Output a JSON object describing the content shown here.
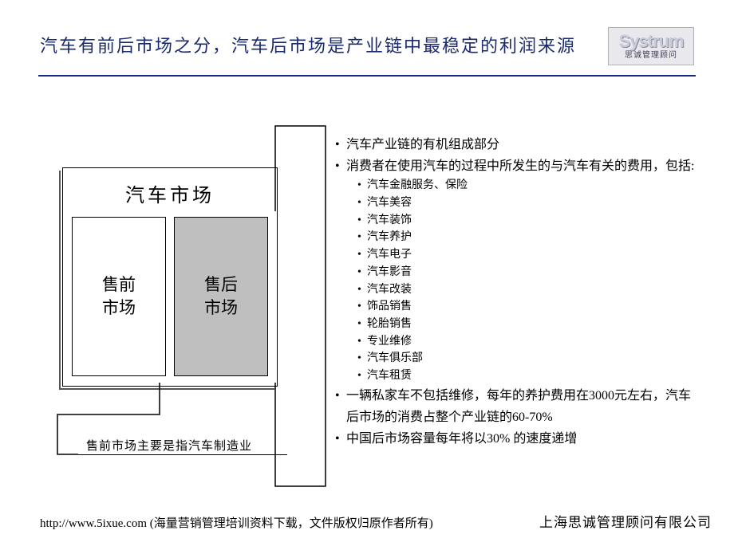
{
  "header": {
    "title": "汽车有前后市场之分，汽车后市场是产业链中最稳定的利润来源",
    "logo_main": "Systrum",
    "logo_sub": "思诚管理顾问",
    "divider_color": "#1a2a8a",
    "title_color": "#1a2a6c"
  },
  "diagram": {
    "title": "汽车市场",
    "left_box": "售前\n市场",
    "right_box": "售后\n市场",
    "left_bg": "#ffffff",
    "right_bg": "#bfbfbf",
    "border_color": "#000000",
    "shadow_color": "#555555",
    "caption": "售前市场主要是指汽车制造业"
  },
  "callouts": {
    "line_color": "#000000",
    "line_width": 1.5
  },
  "content": {
    "bullets": [
      {
        "text": "汽车产业链的有机组成部分"
      },
      {
        "text": "消费者在使用汽车的过程中所发生的与汽车有关的费用，包括:",
        "sub": [
          "汽车金融服务、保险",
          "汽车美容",
          "汽车装饰",
          "汽车养护",
          "汽车电子",
          "汽车影音",
          "汽车改装",
          "饰品销售",
          "轮胎销售",
          "专业维修",
          "汽车俱乐部",
          "汽车租赁"
        ]
      },
      {
        "text": "一辆私家车不包括维修，每年的养护费用在3000元左右，汽车后市场的消费占整个产业链的60-70%"
      },
      {
        "text": "中国后市场容量每年将以30% 的速度递增"
      }
    ]
  },
  "footer": {
    "left": "http://www.5ixue.com (海量营销管理培训资料下载，文件版权归原作者所有)",
    "right": "上海思诚管理顾问有限公司"
  }
}
